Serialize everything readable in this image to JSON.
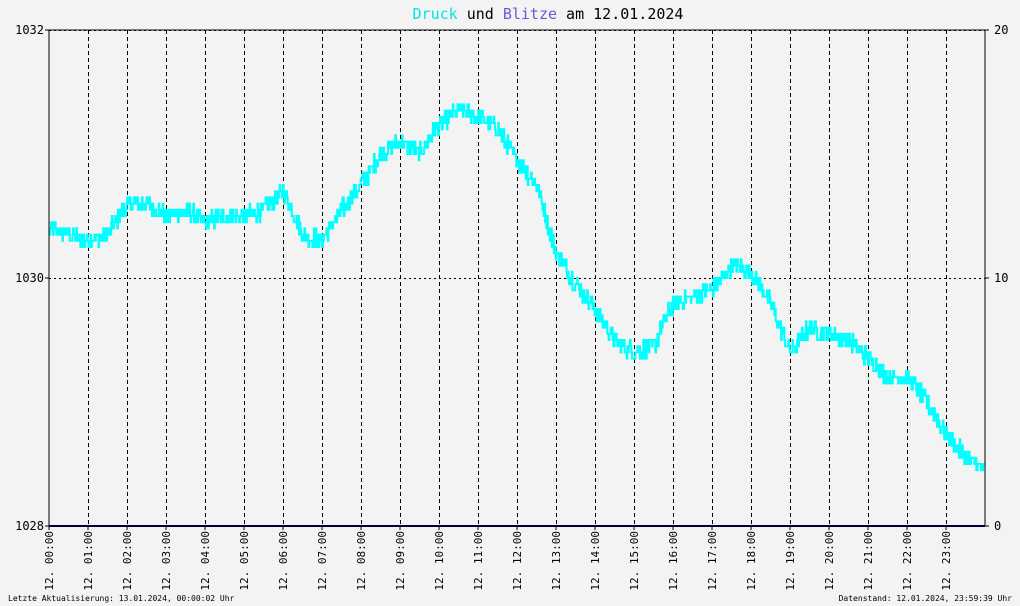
{
  "chart_data": {
    "type": "line",
    "title": {
      "series1": "Druck",
      "middle": " und ",
      "series2": "Blitze",
      "rest": " am 12.01.2024"
    },
    "x_tick_labels": [
      "12. 00:00",
      "12. 01:00",
      "12. 02:00",
      "12. 03:00",
      "12. 04:00",
      "12. 05:00",
      "12. 06:00",
      "12. 07:00",
      "12. 08:00",
      "12. 09:00",
      "12. 10:00",
      "12. 11:00",
      "12. 12:00",
      "12. 13:00",
      "12. 14:00",
      "12. 15:00",
      "12. 16:00",
      "12. 17:00",
      "12. 18:00",
      "12. 19:00",
      "12. 20:00",
      "12. 21:00",
      "12. 22:00",
      "12. 23:00"
    ],
    "y_left": {
      "range": [
        1028,
        1032
      ],
      "tick_labels": [
        "1032",
        "1030",
        "1028"
      ]
    },
    "y_right": {
      "range": [
        0,
        20
      ],
      "tick_labels": [
        "20",
        "10",
        "0"
      ]
    },
    "grid": true,
    "series": [
      {
        "name": "Druck",
        "color": "#00ffff",
        "axis": "left",
        "x_hours": [
          0,
          0.5,
          1,
          1.5,
          2,
          2.5,
          3,
          3.5,
          4,
          4.5,
          5,
          5.5,
          6,
          6.5,
          7,
          7.5,
          8,
          8.5,
          9,
          9.5,
          10,
          10.5,
          11,
          11.5,
          12,
          12.5,
          13,
          13.5,
          14,
          14.5,
          15,
          15.5,
          16,
          16.5,
          17,
          17.5,
          18,
          18.5,
          19,
          19.5,
          20,
          20.5,
          21,
          21.5,
          22,
          22.5,
          23,
          23.5,
          24
        ],
        "values": [
          1030.4,
          1030.35,
          1030.3,
          1030.35,
          1030.6,
          1030.6,
          1030.5,
          1030.55,
          1030.45,
          1030.5,
          1030.5,
          1030.55,
          1030.7,
          1030.35,
          1030.3,
          1030.55,
          1030.75,
          1031.0,
          1031.1,
          1031.0,
          1031.25,
          1031.35,
          1031.3,
          1031.2,
          1030.95,
          1030.75,
          1030.2,
          1029.95,
          1029.75,
          1029.5,
          1029.4,
          1029.45,
          1029.8,
          1029.85,
          1029.9,
          1030.1,
          1030.05,
          1029.8,
          1029.4,
          1029.6,
          1029.55,
          1029.5,
          1029.35,
          1029.2,
          1029.2,
          1029.0,
          1028.75,
          1028.55,
          1028.45
        ],
        "noise_amplitude": 0.07
      },
      {
        "name": "Blitze",
        "color": "#000080",
        "axis": "right",
        "x_hours": [
          0,
          24
        ],
        "values": [
          0,
          0
        ]
      }
    ],
    "colors": {
      "druck": "#00ffff",
      "blitze": "#6a5acd",
      "blitze_line": "#000080"
    }
  },
  "footer": {
    "left": "Letzte Aktualisierung: 13.01.2024, 00:00:02 Uhr",
    "right": "Datenstand: 12.01.2024, 23:59:39 Uhr"
  }
}
